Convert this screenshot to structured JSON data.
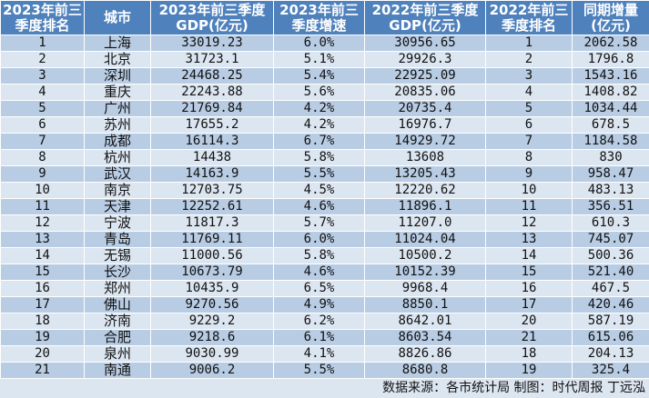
{
  "headers": [
    [
      "2023年前三",
      "季度排名"
    ],
    [
      "城市",
      ""
    ],
    [
      "2023年前三季度",
      "GDP(亿元)"
    ],
    [
      "2023年前三",
      "季度增速"
    ],
    [
      "2022年前三季度",
      "GDP(亿元)"
    ],
    [
      "2022年前三",
      "季度排名"
    ],
    [
      "同期增量",
      "(亿元)"
    ]
  ],
  "rows": [
    [
      "1",
      "上海",
      "33019.23",
      "6.0%",
      "30956.65",
      "1",
      "2062.58"
    ],
    [
      "2",
      "北京",
      "31723.1",
      "5.1%",
      "29926.3",
      "2",
      "1796.8"
    ],
    [
      "3",
      "深圳",
      "24468.25",
      "5.4%",
      "22925.09",
      "3",
      "1543.16"
    ],
    [
      "4",
      "重庆",
      "22243.88",
      "5.6%",
      "20835.06",
      "4",
      "1408.82"
    ],
    [
      "5",
      "广州",
      "21769.84",
      "4.2%",
      "20735.4",
      "5",
      "1034.44"
    ],
    [
      "6",
      "苏州",
      "17655.2",
      "4.2%",
      "16976.7",
      "6",
      "678.5"
    ],
    [
      "7",
      "成都",
      "16114.3",
      "6.7%",
      "14929.72",
      "7",
      "1184.58"
    ],
    [
      "8",
      "杭州",
      "14438",
      "5.8%",
      "13608",
      "8",
      "830"
    ],
    [
      "9",
      "武汉",
      "14163.9",
      "5.5%",
      "13205.43",
      "9",
      "958.47"
    ],
    [
      "10",
      "南京",
      "12703.75",
      "4.5%",
      "12220.62",
      "10",
      "483.13"
    ],
    [
      "11",
      "天津",
      "12252.61",
      "4.6%",
      "11896.1",
      "11",
      "356.51"
    ],
    [
      "12",
      "宁波",
      "11817.3",
      "5.7%",
      "11207.0",
      "12",
      "610.3"
    ],
    [
      "13",
      "青岛",
      "11769.11",
      "6.0%",
      "11024.04",
      "13",
      "745.07"
    ],
    [
      "14",
      "无锡",
      "11000.56",
      "5.8%",
      "10500.2",
      "14",
      "500.36"
    ],
    [
      "15",
      "长沙",
      "10673.79",
      "4.6%",
      "10152.39",
      "15",
      "521.40"
    ],
    [
      "16",
      "郑州",
      "10435.9",
      "6.5%",
      "9968.4",
      "16",
      "467.5"
    ],
    [
      "17",
      "佛山",
      "9270.56",
      "4.9%",
      "8850.1",
      "17",
      "420.46"
    ],
    [
      "18",
      "济南",
      "9229.2",
      "6.2%",
      "8642.01",
      "20",
      "587.19"
    ],
    [
      "19",
      "合肥",
      "9218.6",
      "6.1%",
      "8603.54",
      "21",
      "615.06"
    ],
    [
      "20",
      "泉州",
      "9030.99",
      "4.1%",
      "8826.86",
      "18",
      "204.13"
    ],
    [
      "21",
      "南通",
      "9006.2",
      "5.5%",
      "8680.8",
      "19",
      "325.4"
    ]
  ],
  "footer": "数据来源：各市统计局  制图：时代周报  丁远泓",
  "colors": {
    "header": "#4f81bd",
    "row_odd": "#b8cce4",
    "row_even": "#dce6f1"
  }
}
